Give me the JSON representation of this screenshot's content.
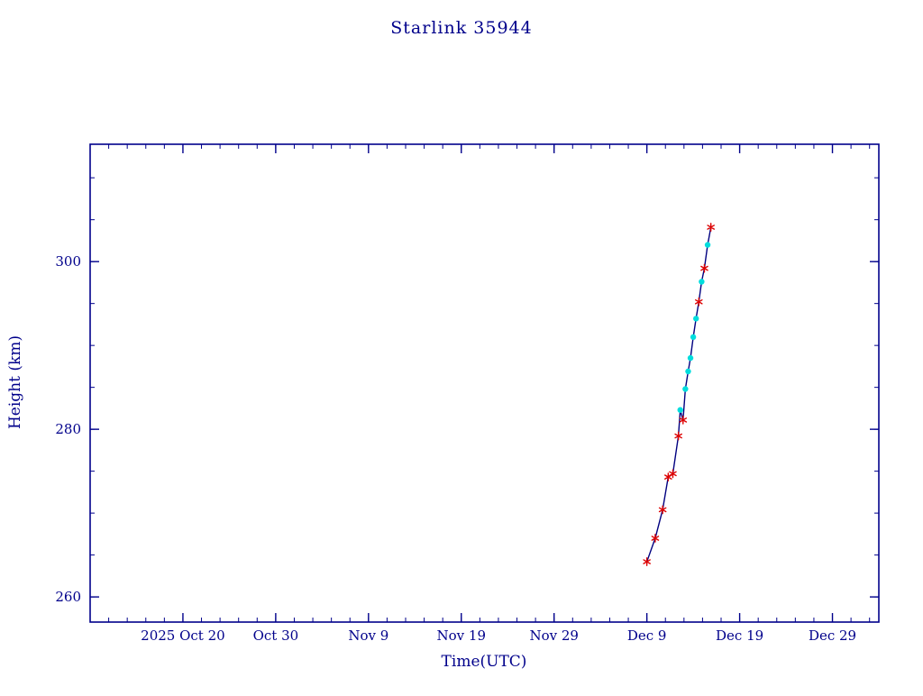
{
  "title": "Starlink 35944",
  "colors": {
    "axis": "#00008B",
    "text": "#00008B",
    "line": "#000080",
    "red_marker": "#DD0000",
    "cyan_marker": "#00DDDD",
    "background": "#FFFFFF"
  },
  "chart_data": {
    "type": "line",
    "title": "Starlink 35944",
    "xlabel": "Time(UTC)",
    "ylabel": "Height (km)",
    "x_axis_unit": "days, day 0 = left edge of axis (approx 2025 Oct 10)",
    "x_domain_days": [
      0,
      85
    ],
    "x_major_ticks": [
      {
        "day": 10,
        "label": "2025 Oct 20"
      },
      {
        "day": 20,
        "label": "Oct 30"
      },
      {
        "day": 30,
        "label": "Nov 9"
      },
      {
        "day": 40,
        "label": "Nov 19"
      },
      {
        "day": 50,
        "label": "Nov 29"
      },
      {
        "day": 60,
        "label": "Dec 9"
      },
      {
        "day": 70,
        "label": "Dec 19"
      },
      {
        "day": 80,
        "label": "Dec 29"
      }
    ],
    "x_minor_step_days": 2,
    "ylim": [
      257,
      314
    ],
    "y_major_ticks": [
      260,
      280,
      300
    ],
    "y_minor_step": 5,
    "legend": "none",
    "grid": false,
    "series": [
      {
        "name": "height-km",
        "marker_legend": {
          "r": "red-asterisk",
          "c": "cyan-dot"
        },
        "points": [
          [
            60.0,
            264.2,
            "r"
          ],
          [
            60.9,
            267.0,
            "r"
          ],
          [
            61.7,
            270.4,
            "r"
          ],
          [
            62.3,
            274.3,
            "r"
          ],
          [
            62.8,
            274.7,
            "r"
          ],
          [
            63.4,
            279.2,
            "r"
          ],
          [
            63.6,
            282.3,
            "c"
          ],
          [
            63.9,
            281.1,
            "r"
          ],
          [
            64.15,
            284.8,
            "c"
          ],
          [
            64.45,
            286.9,
            "c"
          ],
          [
            64.7,
            288.5,
            "c"
          ],
          [
            65.0,
            291.0,
            "c"
          ],
          [
            65.3,
            293.2,
            "c"
          ],
          [
            65.6,
            295.2,
            "r"
          ],
          [
            65.9,
            297.6,
            "c"
          ],
          [
            66.2,
            299.2,
            "r"
          ],
          [
            66.55,
            302.0,
            "c"
          ],
          [
            66.9,
            304.1,
            "r"
          ]
        ]
      }
    ]
  }
}
